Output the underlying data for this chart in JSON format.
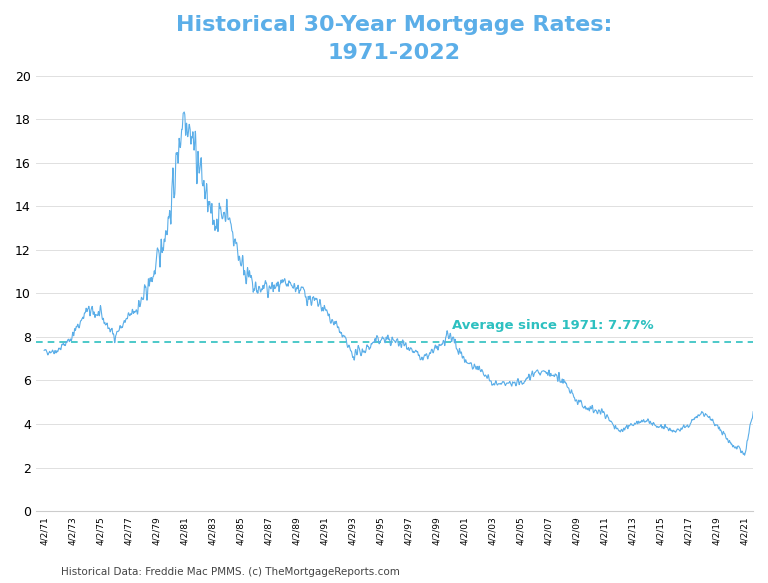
{
  "title": "Historical 30-Year Mortgage Rates:\n1971-2022",
  "title_color": "#5BAEE8",
  "line_color": "#5BAEE8",
  "avg_line_color": "#2DC0C0",
  "avg_value": 7.77,
  "avg_label": "Average since 1971: 7.77%",
  "footer": "Historical Data: Freddie Mac PMMS. (c) TheMortgageReports.com",
  "ylim": [
    0,
    20
  ],
  "yticks": [
    0,
    2,
    4,
    6,
    8,
    10,
    12,
    14,
    16,
    18,
    20
  ],
  "background_color": "#ffffff",
  "grid_color": "#e0e0e0",
  "x_labels": [
    "4/2/71",
    "4/2/73",
    "4/2/75",
    "4/2/77",
    "4/2/79",
    "4/2/81",
    "4/2/83",
    "4/2/85",
    "4/2/87",
    "4/2/89",
    "4/2/91",
    "4/2/93",
    "4/2/95",
    "4/2/97",
    "4/2/99",
    "4/2/01",
    "4/2/03",
    "4/2/05",
    "4/2/07",
    "4/2/09",
    "4/2/11",
    "4/2/13",
    "4/2/15",
    "4/2/17",
    "4/2/19",
    "4/2/21"
  ],
  "anchor_years": [
    1971,
    1972,
    1973,
    1974,
    1975,
    1976,
    1977,
    1978,
    1979,
    1980,
    1981,
    1982,
    1983,
    1984,
    1985,
    1986,
    1987,
    1988,
    1989,
    1990,
    1991,
    1992,
    1993,
    1994,
    1995,
    1996,
    1997,
    1998,
    1999,
    2000,
    2001,
    2002,
    2003,
    2004,
    2005,
    2006,
    2007,
    2008,
    2009,
    2010,
    2011,
    2012,
    2013,
    2014,
    2015,
    2016,
    2017,
    2018,
    2019,
    2020,
    2021,
    2022
  ],
  "anchor_rates": [
    7.33,
    7.38,
    8.02,
    9.19,
    9.01,
    8.05,
    8.85,
    9.64,
    11.19,
    13.74,
    18.63,
    16.04,
    13.24,
    13.88,
    11.55,
    10.18,
    10.2,
    10.33,
    10.32,
    9.74,
    9.25,
    8.39,
    7.16,
    7.47,
    7.93,
    7.8,
    7.6,
    6.94,
    7.44,
    8.05,
    6.97,
    6.54,
    5.83,
    5.84,
    5.87,
    6.41,
    6.34,
    6.04,
    5.04,
    4.69,
    4.51,
    3.66,
    3.98,
    4.17,
    3.85,
    3.65,
    3.99,
    4.54,
    3.94,
    3.11,
    2.65,
    5.55
  ],
  "noise_levels": [
    0.15,
    0.18,
    0.25,
    0.35,
    0.3,
    0.28,
    0.3,
    0.45,
    0.6,
    0.9,
    1.2,
    1.1,
    0.8,
    0.7,
    0.55,
    0.5,
    0.45,
    0.35,
    0.35,
    0.35,
    0.3,
    0.28,
    0.25,
    0.3,
    0.28,
    0.25,
    0.22,
    0.2,
    0.22,
    0.25,
    0.22,
    0.2,
    0.18,
    0.18,
    0.18,
    0.2,
    0.22,
    0.25,
    0.2,
    0.18,
    0.18,
    0.15,
    0.18,
    0.18,
    0.15,
    0.12,
    0.15,
    0.18,
    0.15,
    0.15,
    0.18,
    0.35
  ]
}
